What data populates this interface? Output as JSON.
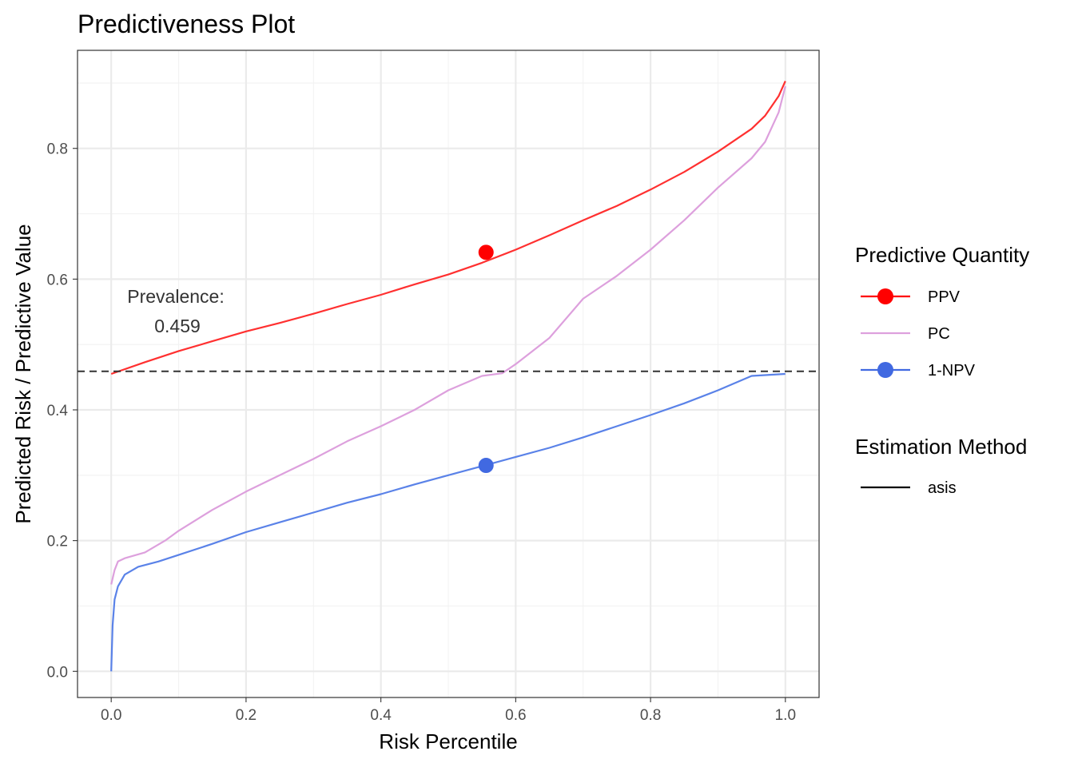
{
  "chart_data": {
    "type": "line",
    "title": "Predictiveness Plot",
    "xlabel": "Risk Percentile",
    "ylabel": "Predicted Risk / Predictive Value",
    "xlim": [
      -0.05,
      1.05
    ],
    "ylim": [
      -0.04,
      0.95
    ],
    "x_ticks": [
      "0.0",
      "0.2",
      "0.4",
      "0.6",
      "0.8",
      "1.0"
    ],
    "y_ticks": [
      "0.0",
      "0.2",
      "0.4",
      "0.6",
      "0.8"
    ],
    "grid": true,
    "legend_position": "right",
    "prevalence": 0.459,
    "annotation": {
      "line1": "Prevalence:",
      "line2": "0.459"
    },
    "legend": {
      "quantity_title": "Predictive Quantity",
      "quantity_items": [
        {
          "label": "PPV",
          "color": "#ff0000",
          "marker": true
        },
        {
          "label": "PC",
          "color": "#dda0dd",
          "marker": false
        },
        {
          "label": "1-NPV",
          "color": "#4169e1",
          "marker": true
        }
      ],
      "method_title": "Estimation Method",
      "method_items": [
        {
          "label": "asis",
          "color": "#000000"
        }
      ]
    },
    "series": [
      {
        "name": "PPV",
        "color": "#ff3030",
        "x": [
          0.0,
          0.05,
          0.1,
          0.15,
          0.2,
          0.25,
          0.3,
          0.35,
          0.4,
          0.45,
          0.5,
          0.55,
          0.6,
          0.65,
          0.7,
          0.75,
          0.8,
          0.85,
          0.9,
          0.95,
          0.97,
          0.99,
          1.0
        ],
        "y": [
          0.455,
          0.473,
          0.49,
          0.505,
          0.52,
          0.533,
          0.547,
          0.562,
          0.576,
          0.592,
          0.607,
          0.625,
          0.645,
          0.667,
          0.69,
          0.712,
          0.737,
          0.764,
          0.795,
          0.83,
          0.85,
          0.88,
          0.903
        ]
      },
      {
        "name": "PC",
        "color": "#dda0dd",
        "x": [
          0.0,
          0.005,
          0.01,
          0.02,
          0.05,
          0.08,
          0.1,
          0.15,
          0.2,
          0.25,
          0.3,
          0.35,
          0.4,
          0.43,
          0.45,
          0.5,
          0.55,
          0.58,
          0.6,
          0.65,
          0.7,
          0.75,
          0.8,
          0.85,
          0.9,
          0.95,
          0.97,
          0.99,
          1.0
        ],
        "y": [
          0.133,
          0.155,
          0.168,
          0.173,
          0.182,
          0.2,
          0.215,
          0.247,
          0.275,
          0.3,
          0.325,
          0.352,
          0.375,
          0.39,
          0.4,
          0.43,
          0.452,
          0.456,
          0.47,
          0.51,
          0.57,
          0.605,
          0.645,
          0.69,
          0.74,
          0.785,
          0.81,
          0.855,
          0.895
        ]
      },
      {
        "name": "1-NPV",
        "color": "#5a82e8",
        "x": [
          0.0,
          0.002,
          0.005,
          0.01,
          0.02,
          0.04,
          0.07,
          0.1,
          0.15,
          0.2,
          0.25,
          0.3,
          0.35,
          0.4,
          0.45,
          0.5,
          0.55,
          0.6,
          0.65,
          0.7,
          0.75,
          0.8,
          0.85,
          0.9,
          0.95,
          1.0
        ],
        "y": [
          0.0,
          0.07,
          0.11,
          0.13,
          0.148,
          0.16,
          0.168,
          0.178,
          0.195,
          0.213,
          0.228,
          0.243,
          0.258,
          0.271,
          0.286,
          0.3,
          0.314,
          0.328,
          0.342,
          0.358,
          0.375,
          0.392,
          0.41,
          0.43,
          0.452,
          0.455
        ]
      }
    ],
    "points": [
      {
        "series": "PPV",
        "x": 0.556,
        "y": 0.641,
        "color": "#ff0000"
      },
      {
        "series": "1-NPV",
        "x": 0.556,
        "y": 0.315,
        "color": "#4169e1"
      }
    ]
  }
}
